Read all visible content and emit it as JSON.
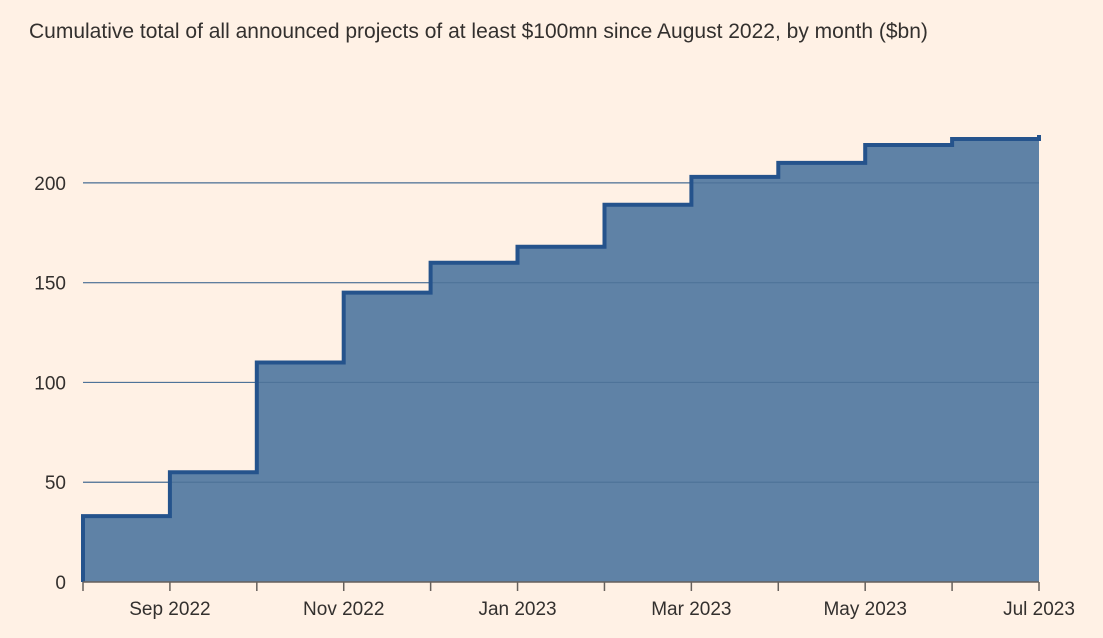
{
  "chart_data": {
    "type": "area",
    "title": "Cumulative total of all announced projects of at least $100mn since August 2022, by month ($bn)",
    "xlabel": "",
    "ylabel": "",
    "step": true,
    "x": [
      "2022-08",
      "2022-09",
      "2022-10",
      "2022-11",
      "2022-12",
      "2023-01",
      "2023-02",
      "2023-03",
      "2023-04",
      "2023-05",
      "2023-06",
      "2023-07"
    ],
    "values": [
      33,
      55,
      110,
      145,
      160,
      168,
      189,
      203,
      210,
      219,
      222,
      224
    ],
    "ylim": [
      0,
      224
    ],
    "yticks": [
      0,
      50,
      100,
      150,
      200
    ],
    "xtick_labels": [
      {
        "x": "2022-09",
        "label": "Sep 2022"
      },
      {
        "x": "2022-11",
        "label": "Nov 2022"
      },
      {
        "x": "2023-01",
        "label": "Jan 2023"
      },
      {
        "x": "2023-03",
        "label": "Mar 2023"
      },
      {
        "x": "2023-05",
        "label": "May 2023"
      },
      {
        "x": "2023-07",
        "label": "Jul 2023"
      }
    ],
    "grid": true,
    "colors": {
      "fill": "#5F82A6",
      "line": "#25538C",
      "grid": "#C9BDB2",
      "axis": "#66605C",
      "background": "#FFF1E5"
    }
  }
}
